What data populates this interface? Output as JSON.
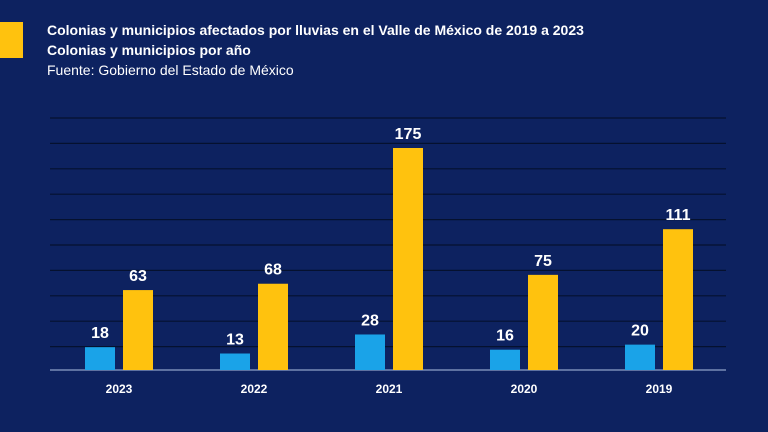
{
  "header": {
    "title": "Colonias y municipios afectados por lluvias en el Valle de México de 2019 a 2023",
    "subtitle": "Colonias y municipios por año",
    "source": "Fuente: Gobierno del Estado de México"
  },
  "colors": {
    "background": "#0d2260",
    "accent": "#ffc20e",
    "series_blue": "#1aa3e8",
    "series_yellow": "#ffc20e",
    "gridline": "#05112f"
  },
  "chart_data": {
    "type": "bar",
    "categories": [
      "2023",
      "2022",
      "2021",
      "2020",
      "2019"
    ],
    "series": [
      {
        "values": [
          18,
          13,
          28,
          16,
          20
        ],
        "color": "#1aa3e8"
      },
      {
        "values": [
          63,
          68,
          175,
          75,
          111
        ],
        "color": "#ffc20e"
      }
    ],
    "ylim": [
      0,
      175
    ],
    "grid": true,
    "legend": "none"
  }
}
